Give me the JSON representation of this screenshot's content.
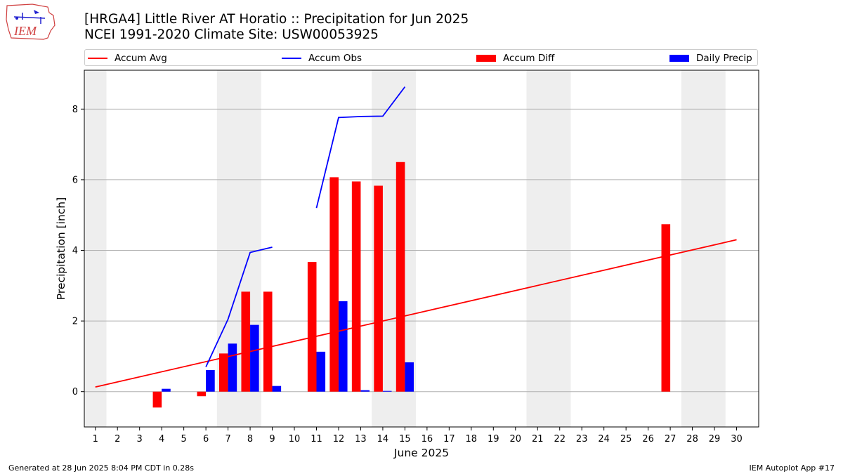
{
  "header": {
    "title_line1": "[HRGA4] Little River  AT Horatio :: Precipitation for Jun 2025",
    "title_line2": "NCEI 1991-2020 Climate Site: USW00053925",
    "logo_text": "IEM"
  },
  "legend": {
    "items": [
      {
        "label": "Accum Avg",
        "kind": "line",
        "color": "#ff0000"
      },
      {
        "label": "Accum Obs",
        "kind": "line",
        "color": "#0000ff"
      },
      {
        "label": "Accum Diff",
        "kind": "box",
        "color": "#ff0000"
      },
      {
        "label": "Daily Precip",
        "kind": "box",
        "color": "#0000ff"
      }
    ]
  },
  "footer": {
    "left": "Generated at 28 Jun 2025 8:04 PM CDT in 0.28s",
    "right": "IEM Autoplot App #17"
  },
  "chart_data": {
    "type": "bar",
    "xlabel": "June 2025",
    "ylabel": "Precipitation [inch]",
    "xlim": [
      0.5,
      31.0
    ],
    "ylim": [
      -1.0,
      9.1
    ],
    "yticks": [
      0,
      2,
      4,
      6,
      8
    ],
    "grid": "horizontal",
    "legend_position": "top",
    "categories": [
      "1",
      "2",
      "3",
      "4",
      "5",
      "6",
      "7",
      "8",
      "9",
      "10",
      "11",
      "12",
      "13",
      "14",
      "15",
      "16",
      "17",
      "18",
      "19",
      "20",
      "21",
      "22",
      "23",
      "24",
      "25",
      "26",
      "27",
      "28",
      "29",
      "30"
    ],
    "weekend_shading": [
      [
        0.5,
        1.5
      ],
      [
        6.5,
        8.5
      ],
      [
        13.5,
        15.5
      ],
      [
        20.5,
        22.5
      ],
      [
        27.5,
        29.5
      ]
    ],
    "series": [
      {
        "name": "Accum Avg",
        "kind": "line",
        "color": "#ff0000",
        "x": [
          1,
          30
        ],
        "y": [
          0.13,
          4.3
        ]
      },
      {
        "name": "Accum Obs",
        "kind": "line",
        "color": "#0000ff",
        "segments": [
          {
            "x": [
              6,
              7,
              8,
              9
            ],
            "y": [
              0.7,
              2.05,
              3.94,
              4.09
            ]
          },
          {
            "x": [
              11,
              12,
              13,
              14,
              15
            ],
            "y": [
              5.2,
              7.76,
              7.79,
              7.8,
              8.63
            ]
          }
        ]
      },
      {
        "name": "Accum Diff",
        "kind": "bar",
        "color": "#ff0000",
        "x": [
          4,
          6,
          7,
          8,
          9,
          11,
          12,
          13,
          14,
          15,
          27
        ],
        "values": [
          -0.45,
          -0.13,
          1.08,
          2.83,
          2.83,
          3.67,
          6.07,
          5.95,
          5.83,
          6.5,
          4.74
        ]
      },
      {
        "name": "Daily Precip",
        "kind": "bar",
        "color": "#0000ff",
        "x": [
          4,
          6,
          7,
          8,
          9,
          11,
          12,
          13,
          14,
          15
        ],
        "values": [
          0.08,
          0.61,
          1.36,
          1.89,
          0.16,
          1.13,
          2.56,
          0.04,
          0.02,
          0.83
        ]
      }
    ]
  }
}
